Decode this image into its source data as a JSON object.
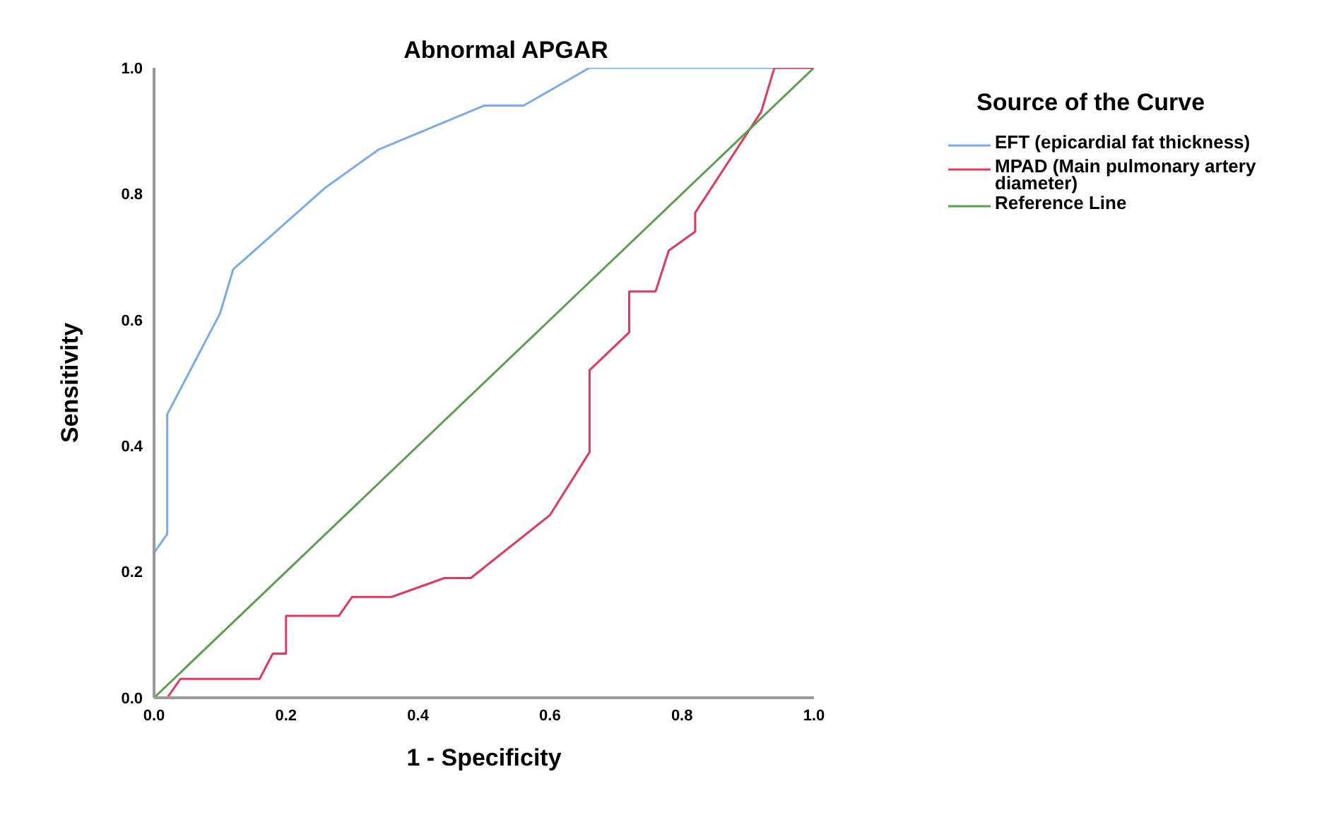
{
  "chart_data": {
    "type": "line",
    "title": "Abnormal APGAR",
    "xlabel": "1 - Specificity",
    "ylabel": "Sensitivity",
    "legend_title": "Source of the Curve",
    "legend": "top right",
    "grid": false,
    "marker": "none",
    "line_style": "solid",
    "xlim": [
      0,
      1
    ],
    "ylim": [
      0,
      1
    ],
    "xticks": [
      {
        "value": 0,
        "label": "0.0"
      },
      {
        "value": 0.2,
        "label": "0.2"
      },
      {
        "value": 0.4,
        "label": "0.4"
      },
      {
        "value": 0.6,
        "label": "0.6"
      },
      {
        "value": 0.8,
        "label": "0.8"
      },
      {
        "value": 1,
        "label": "1.0"
      }
    ],
    "yticks": [
      {
        "value": 0,
        "label": "0.0"
      },
      {
        "value": 0.2,
        "label": "0.2"
      },
      {
        "value": 0.4,
        "label": "0.4"
      },
      {
        "value": 0.6,
        "label": "0.6"
      },
      {
        "value": 0.8,
        "label": "0.8"
      },
      {
        "value": 1,
        "label": "1.0"
      }
    ],
    "series": [
      {
        "name": "EFT (epicardial fat thickness)",
        "color": "#79aaeb",
        "x": [
          0,
          0,
          0.02,
          0.02,
          0.1,
          0.12,
          0.26,
          0.34,
          0.5,
          0.56,
          0.66,
          1
        ],
        "values": [
          0,
          0.23,
          0.26,
          0.45,
          0.61,
          0.68,
          0.81,
          0.87,
          0.94,
          0.94,
          1,
          1
        ]
      },
      {
        "name": "MPAD (Main pulmonary artery diameter)",
        "color": "#e2385b",
        "x": [
          0,
          0.02,
          0.04,
          0.16,
          0.18,
          0.2,
          0.2,
          0.28,
          0.3,
          0.36,
          0.44,
          0.48,
          0.6,
          0.66,
          0.66,
          0.72,
          0.72,
          0.76,
          0.78,
          0.82,
          0.82,
          0.92,
          0.94,
          1
        ],
        "values": [
          0,
          0,
          0.03,
          0.03,
          0.07,
          0.07,
          0.13,
          0.13,
          0.16,
          0.16,
          0.19,
          0.19,
          0.29,
          0.39,
          0.52,
          0.58,
          0.645,
          0.645,
          0.71,
          0.74,
          0.77,
          0.93,
          1,
          1
        ]
      },
      {
        "name": "Reference Line",
        "color": "#5c9e50",
        "x": [
          0,
          1
        ],
        "values": [
          0,
          1
        ]
      }
    ]
  }
}
